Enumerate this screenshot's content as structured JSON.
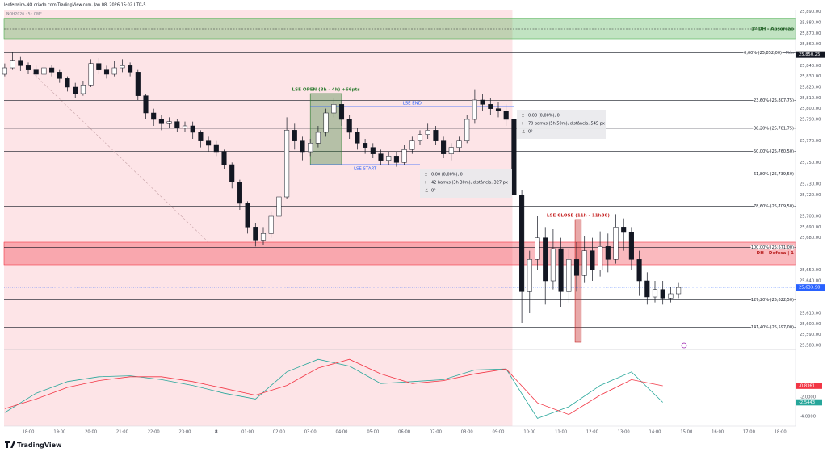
{
  "header": {
    "author_line": "leoferreira-NQ criado com TradingView.com, Jan 08, 2026 15:02 UTC-5",
    "symbol": "NQH2026 · 5 · CME"
  },
  "chart_data": {
    "type": "candlestick",
    "color": "#131722",
    "open": [
      25832,
      25838,
      25845,
      25840,
      25836,
      25832,
      25838,
      25834,
      25828,
      25820,
      25814,
      25822,
      25842,
      25836,
      25832,
      25838,
      25840,
      25834,
      25812,
      25796,
      25790,
      25786,
      25788,
      25782,
      25784,
      25778,
      25770,
      25766,
      25760,
      25748,
      25732,
      25712,
      25690,
      25678,
      25684,
      25700,
      25718,
      25780,
      25770,
      25760,
      25768,
      25778,
      25796,
      25804,
      25790,
      25778,
      25768,
      25764,
      25758,
      25752,
      25756,
      25750,
      25762,
      25770,
      25776,
      25780,
      25770,
      25758,
      25764,
      25770,
      25790,
      25808,
      25804,
      25800,
      25798,
      25790,
      25720,
      25630,
      25660,
      25680,
      25640,
      25670,
      25630,
      25660,
      25645,
      25668,
      25650,
      25672,
      25660,
      25690,
      25685,
      25660,
      25640,
      25625,
      25632,
      25624,
      25628
    ],
    "high": [
      25842,
      25852,
      25848,
      25843,
      25840,
      25842,
      25841,
      25836,
      25830,
      25824,
      25826,
      25846,
      25847,
      25840,
      25844,
      25846,
      25843,
      25836,
      25814,
      25800,
      25794,
      25792,
      25790,
      25788,
      25788,
      25780,
      25774,
      25770,
      25762,
      25750,
      25734,
      25714,
      25694,
      25690,
      25704,
      25722,
      25792,
      25786,
      25774,
      25772,
      25784,
      25800,
      25810,
      25808,
      25794,
      25782,
      25772,
      25768,
      25762,
      25760,
      25760,
      25766,
      25774,
      25780,
      25786,
      25784,
      25774,
      25768,
      25774,
      25794,
      25818,
      25814,
      25810,
      25806,
      25804,
      25794,
      25724,
      25668,
      25700,
      25690,
      25688,
      25680,
      25670,
      25676,
      25682,
      25680,
      25686,
      25684,
      25702,
      25698,
      25690,
      25668,
      25648,
      25640,
      25640,
      25634,
      25638
    ],
    "low": [
      25830,
      25836,
      25835,
      25832,
      25828,
      25830,
      25830,
      25824,
      25816,
      25810,
      25812,
      25820,
      25832,
      25828,
      25830,
      25834,
      25830,
      25808,
      25790,
      25784,
      25780,
      25782,
      25778,
      25778,
      25772,
      25764,
      25760,
      25756,
      25744,
      25726,
      25706,
      25684,
      25672,
      25673,
      25680,
      25696,
      25716,
      25762,
      25752,
      25756,
      25764,
      25774,
      25792,
      25784,
      25772,
      25762,
      25758,
      25754,
      25748,
      25748,
      25746,
      25748,
      25758,
      25766,
      25772,
      25766,
      25754,
      25752,
      25760,
      25768,
      25786,
      25798,
      25794,
      25792,
      25784,
      25712,
      25601,
      25610,
      25650,
      25618,
      25632,
      25616,
      25620,
      25630,
      25638,
      25640,
      25644,
      25648,
      25656,
      25668,
      25650,
      25626,
      25618,
      25620,
      25618,
      25620,
      25624
    ],
    "close": [
      25838,
      25845,
      25840,
      25836,
      25832,
      25838,
      25834,
      25828,
      25820,
      25814,
      25822,
      25842,
      25836,
      25832,
      25838,
      25840,
      25834,
      25812,
      25796,
      25790,
      25786,
      25788,
      25782,
      25784,
      25778,
      25770,
      25766,
      25760,
      25748,
      25732,
      25712,
      25690,
      25678,
      25684,
      25700,
      25718,
      25780,
      25770,
      25760,
      25768,
      25778,
      25796,
      25804,
      25790,
      25778,
      25768,
      25764,
      25758,
      25752,
      25756,
      25750,
      25762,
      25770,
      25776,
      25780,
      25770,
      25758,
      25764,
      25770,
      25790,
      25808,
      25804,
      25800,
      25798,
      25790,
      25720,
      25630,
      25660,
      25680,
      25640,
      25670,
      25630,
      25660,
      25645,
      25668,
      25650,
      25672,
      25660,
      25690,
      25685,
      25660,
      25640,
      25625,
      25632,
      25624,
      25628,
      25633.9
    ],
    "last_price_label": "25,633.90",
    "ylim": [
      25577,
      25892
    ],
    "yticks": [
      {
        "value": 25890,
        "label": "25,890.00"
      },
      {
        "value": 25880,
        "label": "25,880.00"
      },
      {
        "value": 25870,
        "label": "25,870.00"
      },
      {
        "value": 25860,
        "label": "25,860.00"
      },
      {
        "value": 25840,
        "label": "25,840.00"
      },
      {
        "value": 25830,
        "label": "25,830.00"
      },
      {
        "value": 25820,
        "label": "25,820.00"
      },
      {
        "value": 25810,
        "label": "25,810.00"
      },
      {
        "value": 25800,
        "label": "25,800.00"
      },
      {
        "value": 25790,
        "label": "25,790.00"
      },
      {
        "value": 25770,
        "label": "25,770.00"
      },
      {
        "value": 25750,
        "label": "25,750.00"
      },
      {
        "value": 25730,
        "label": "25,730.00"
      },
      {
        "value": 25720,
        "label": "25,720.00"
      },
      {
        "value": 25700,
        "label": "25,700.00"
      },
      {
        "value": 25690,
        "label": "25,690.00"
      },
      {
        "value": 25680,
        "label": "25,680.00"
      },
      {
        "value": 25650,
        "label": "25,650.00"
      },
      {
        "value": 25640,
        "label": "25,640.00"
      },
      {
        "value": 25610,
        "label": "25,610.00"
      },
      {
        "value": 25600,
        "label": "25,600.00"
      },
      {
        "value": 25590,
        "label": "25,590.00"
      },
      {
        "value": 25580,
        "label": "25,580.00"
      }
    ],
    "axis_markers": [
      {
        "value": 25850.25,
        "label": "25,850.25"
      }
    ],
    "time_labels": [
      "18:00",
      "19:00",
      "20:00",
      "21:00",
      "22:00",
      "23:00",
      "8",
      "01:00",
      "02:00",
      "03:00",
      "04:00",
      "05:00",
      "06:00",
      "07:00",
      "08:00",
      "09:00",
      "10:00",
      "11:00",
      "12:00",
      "13:00",
      "14:00",
      "15:00",
      "16:00",
      "17:00",
      "18:00"
    ],
    "session_shade": {
      "x": [
        -0.6,
        64.8
      ],
      "color": "#fde4e7"
    },
    "fib_levels": [
      {
        "value": 25852,
        "label": "0,00% (25,852,00)"
      },
      {
        "value": 25807.75,
        "label": "23,60% (25,807,75)"
      },
      {
        "value": 25781.75,
        "label": "38,20% (25,781,75)"
      },
      {
        "value": 25760.5,
        "label": "50,00% (25,760,50)"
      },
      {
        "value": 25739.5,
        "label": "61,80% (25,739,50)"
      },
      {
        "value": 25709.5,
        "label": "78,60% (25,709,50)"
      },
      {
        "value": 25671,
        "label": "100,00% (25,671,00)"
      },
      {
        "value": 25622.5,
        "label": "127,20% (25,622,50)"
      },
      {
        "value": 25597,
        "label": "141,40% (25,597,00)"
      }
    ],
    "fib_note": "Máx",
    "zones": [
      {
        "name": "1º DH - Absorção",
        "ylim": [
          25865,
          25884
        ],
        "level": 25874,
        "color": "#4caf50"
      },
      {
        "name": "DH - Defesa | 1",
        "ylim": [
          25655,
          25676
        ],
        "level": 25666,
        "color": "#f23645"
      }
    ],
    "boxes": [
      {
        "label": "LSE OPEN (3h - 4h) +66pts",
        "x": [
          39,
          43
        ],
        "ylim": [
          25748,
          25814
        ],
        "color": "#2e7d32"
      },
      {
        "label": "LSE CLOSE (11h - 11h30)",
        "x": [
          72.8,
          73.6
        ],
        "ylim": [
          25583,
          25697
        ],
        "color": "#c62828"
      }
    ],
    "lse_lines": [
      {
        "label": "LSE END",
        "x": [
          39,
          65
        ],
        "value": 25802,
        "color": "#2962ff"
      },
      {
        "label": "LSE START",
        "x": [
          39,
          53
        ],
        "value": 25748,
        "color": "#2962ff"
      }
    ],
    "measures": [
      {
        "lines": [
          "0,00 (0,00%), 0",
          "70 barras (5h 50m), distância: 545 px",
          "0°"
        ]
      },
      {
        "lines": [
          "0,00 (0,00%), 0",
          "42 barras (3h 30m), distância: 327 px",
          "0°"
        ]
      }
    ],
    "indicator": {
      "ylim": [
        -5,
        2.75
      ],
      "yticks": [
        {
          "value": -2,
          "label": "-2,0000"
        },
        {
          "value": -4,
          "label": "-4,0000"
        }
      ],
      "series": [
        {
          "color": "#26a69a",
          "values": [
            -3.6,
            -1.6,
            -0.4,
            0.1,
            0.2,
            -0.2,
            -0.8,
            -1.6,
            -2.2,
            0.6,
            1.9,
            1.2,
            -0.6,
            -0.4,
            -0.2,
            0.8,
            0.9,
            -4.2,
            -3.0,
            -0.8,
            0.6,
            -2.5443
          ],
          "last_label": "-2,5443"
        },
        {
          "color": "#f23645",
          "values": [
            -3.2,
            -2.2,
            -1.0,
            -0.3,
            0.1,
            0.1,
            -0.4,
            -1.1,
            -1.8,
            -0.8,
            1.0,
            1.9,
            0.4,
            -0.6,
            -0.3,
            0.4,
            0.9,
            -2.6,
            -3.8,
            -1.8,
            -0.2,
            -0.8361
          ],
          "last_label": "-0,8361"
        }
      ]
    }
  },
  "footer": {
    "brand": "TradingView"
  }
}
